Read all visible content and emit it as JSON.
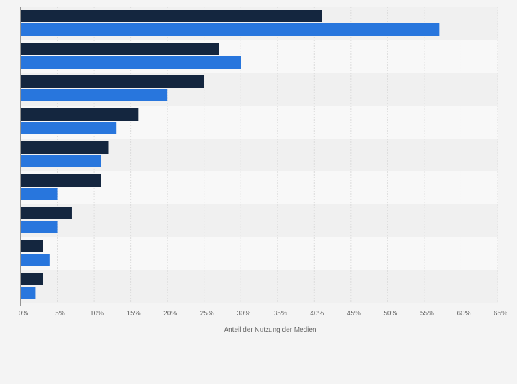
{
  "chart_data": {
    "type": "bar",
    "orientation": "horizontal",
    "categories": [
      "",
      "",
      "",
      "",
      "",
      "",
      "",
      "",
      ""
    ],
    "series": [
      {
        "values": [
          41,
          27,
          25,
          16,
          12,
          11,
          7,
          3,
          3
        ]
      },
      {
        "values": [
          57,
          30,
          20,
          13,
          11,
          5,
          5,
          4,
          2
        ]
      }
    ],
    "xlabel": "Anteil der Nutzung der Medien",
    "ylabel": "",
    "xlim": [
      0,
      65
    ],
    "x_ticks": [
      "0%",
      "5%",
      "10%",
      "15%",
      "20%",
      "25%",
      "30%",
      "35%",
      "40%",
      "45%",
      "50%",
      "55%",
      "60%",
      "65%"
    ],
    "grid": true,
    "legend": "none",
    "colors": {
      "series": [
        "#14263f",
        "#2876dd"
      ],
      "band_dark": "#f0f0f0",
      "band_light": "#f8f8f8",
      "grid": "#dcdcdc",
      "axis": "#333333",
      "text": "#666666"
    }
  }
}
